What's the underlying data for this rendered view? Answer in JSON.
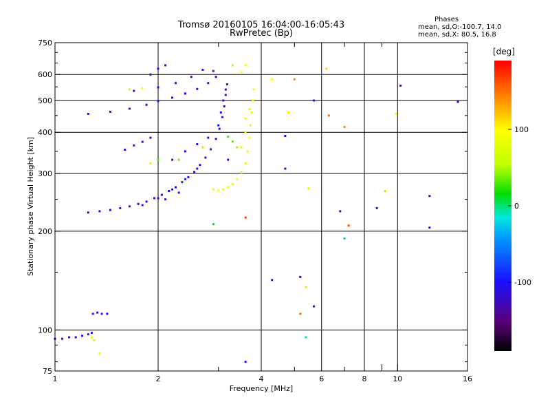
{
  "header": {
    "title_line1": "Tromsø 20160105 16:04:00-16:05:43",
    "title_line2": "RwPretec (Bp)",
    "stats_title": "Phases",
    "stats_line1": "mean, sd,O:-100.7, 14.0",
    "stats_line2": "mean, sd,X:  80.5, 16.8"
  },
  "colorbar": {
    "label": "[deg]",
    "ticks": [
      {
        "value": 100,
        "label": "100"
      },
      {
        "value": 0,
        "label": "0"
      },
      {
        "value": -100,
        "label": "-100"
      }
    ],
    "range": [
      -190,
      190
    ]
  },
  "chart_data": {
    "type": "scatter",
    "title": "Tromsø 20160105 16:04:00-16:05:43",
    "subtitle": "RwPretec (Bp)",
    "xlabel": "Frequency [MHz]",
    "ylabel": "Stationary phase Virtual Height [km]",
    "xscale": "log",
    "yscale": "log",
    "xlim": [
      1,
      16
    ],
    "ylim": [
      75,
      750
    ],
    "xticks": [
      1,
      2,
      4,
      6,
      8,
      10,
      16
    ],
    "xtick_labels": [
      "1",
      "2",
      "4",
      "6",
      "8",
      "10",
      "16"
    ],
    "xgrid": [
      2,
      4,
      6,
      8,
      10
    ],
    "xminor": [
      3,
      5,
      7,
      9
    ],
    "yticks": [
      75,
      100,
      200,
      300,
      400,
      500,
      600,
      750
    ],
    "ytick_labels": [
      "75",
      "100",
      "200",
      "300",
      "400",
      "500",
      "600",
      "750"
    ],
    "ygrid": [
      100,
      200,
      300,
      400,
      500,
      600
    ],
    "grid": true,
    "color_variable": "phase [deg]",
    "series": [
      {
        "mode": "O",
        "points": [
          [
            1.0,
            94,
            -105
          ],
          [
            1.05,
            94,
            -112
          ],
          [
            1.1,
            95,
            -100
          ],
          [
            1.15,
            95,
            -108
          ],
          [
            1.2,
            96,
            -95
          ],
          [
            1.25,
            97,
            -118
          ],
          [
            1.28,
            98,
            -102
          ],
          [
            1.29,
            112,
            -98
          ],
          [
            1.33,
            113,
            -110
          ],
          [
            1.37,
            112,
            -92
          ],
          [
            1.42,
            112,
            -106
          ],
          [
            1.25,
            228,
            -105
          ],
          [
            1.35,
            230,
            -110
          ],
          [
            1.45,
            232,
            -100
          ],
          [
            1.55,
            235,
            -108
          ],
          [
            1.65,
            238,
            -104
          ],
          [
            1.75,
            242,
            -112
          ],
          [
            1.85,
            246,
            -98
          ],
          [
            1.95,
            252,
            -106
          ],
          [
            2.05,
            258,
            -110
          ],
          [
            2.15,
            265,
            -102
          ],
          [
            2.25,
            272,
            -108
          ],
          [
            2.35,
            282,
            -96
          ],
          [
            2.45,
            292,
            -104
          ],
          [
            2.55,
            303,
            -110
          ],
          [
            2.65,
            318,
            -100
          ],
          [
            2.75,
            335,
            -106
          ],
          [
            2.85,
            355,
            -98
          ],
          [
            2.95,
            382,
            -110
          ],
          [
            3.02,
            410,
            -102
          ],
          [
            3.08,
            445,
            -108
          ],
          [
            3.12,
            480,
            -100
          ],
          [
            3.15,
            520,
            -112
          ],
          [
            3.18,
            560,
            -104
          ],
          [
            1.8,
            240,
            -95
          ],
          [
            2.0,
            252,
            -90
          ],
          [
            2.2,
            268,
            -97
          ],
          [
            2.4,
            288,
            -92
          ],
          [
            2.6,
            310,
            -99
          ],
          [
            1.6,
            354,
            -106
          ],
          [
            1.7,
            365,
            -110
          ],
          [
            1.8,
            374,
            -100
          ],
          [
            1.9,
            385,
            -112
          ],
          [
            1.25,
            455,
            -108
          ],
          [
            1.45,
            462,
            -100
          ],
          [
            1.65,
            472,
            -110
          ],
          [
            1.85,
            485,
            -104
          ],
          [
            2.0,
            498,
            -98
          ],
          [
            2.2,
            510,
            -108
          ],
          [
            2.4,
            525,
            -100
          ],
          [
            2.6,
            542,
            -112
          ],
          [
            2.8,
            565,
            -104
          ],
          [
            2.95,
            590,
            -110
          ],
          [
            2.9,
            615,
            -100
          ],
          [
            1.7,
            535,
            -108
          ],
          [
            2.0,
            548,
            -100
          ],
          [
            2.25,
            565,
            -112
          ],
          [
            2.5,
            590,
            -104
          ],
          [
            2.7,
            620,
            -96
          ],
          [
            1.9,
            600,
            -110
          ],
          [
            2.0,
            625,
            -102
          ],
          [
            2.1,
            640,
            -108
          ],
          [
            2.2,
            330,
            -100
          ],
          [
            2.4,
            350,
            -110
          ],
          [
            2.6,
            368,
            -104
          ],
          [
            2.8,
            385,
            -112
          ],
          [
            3.0,
            420,
            -98
          ],
          [
            3.05,
            460,
            -110
          ],
          [
            3.1,
            500,
            -102
          ],
          [
            3.15,
            540,
            -108
          ],
          [
            2.1,
            250,
            -95
          ],
          [
            2.3,
            262,
            -103
          ],
          [
            3.2,
            330,
            -100
          ],
          [
            4.7,
            390,
            -105
          ],
          [
            4.7,
            310,
            -112
          ],
          [
            5.7,
            500,
            -100
          ],
          [
            6.8,
            230,
            -110
          ],
          [
            8.7,
            235,
            -104
          ],
          [
            12.4,
            205,
            -96
          ],
          [
            12.4,
            256,
            -110
          ],
          [
            10.2,
            555,
            -98
          ],
          [
            4.3,
            142,
            -106
          ],
          [
            5.2,
            145,
            -100
          ],
          [
            5.7,
            118,
            -110
          ],
          [
            3.6,
            80,
            -104
          ],
          [
            15.0,
            495,
            -102
          ]
        ]
      },
      {
        "mode": "X",
        "points": [
          [
            1.28,
            95,
            85
          ],
          [
            1.3,
            93,
            70
          ],
          [
            1.35,
            85,
            90
          ],
          [
            2.9,
            268,
            80
          ],
          [
            3.0,
            266,
            95
          ],
          [
            3.1,
            268,
            78
          ],
          [
            3.2,
            272,
            88
          ],
          [
            3.3,
            278,
            82
          ],
          [
            3.4,
            288,
            92
          ],
          [
            3.5,
            302,
            76
          ],
          [
            3.6,
            322,
            86
          ],
          [
            3.65,
            350,
            80
          ],
          [
            3.7,
            385,
            94
          ],
          [
            3.72,
            420,
            78
          ],
          [
            3.75,
            460,
            86
          ],
          [
            3.78,
            500,
            80
          ],
          [
            3.8,
            540,
            92
          ],
          [
            3.5,
            360,
            84
          ],
          [
            3.6,
            400,
            88
          ],
          [
            3.6,
            440,
            90
          ],
          [
            3.7,
            470,
            76
          ],
          [
            3.4,
            360,
            45
          ],
          [
            3.3,
            375,
            35
          ],
          [
            3.2,
            388,
            30
          ],
          [
            1.65,
            540,
            70
          ],
          [
            1.8,
            545,
            95
          ],
          [
            2.7,
            360,
            50
          ],
          [
            2.3,
            330,
            40
          ],
          [
            2.0,
            330,
            30
          ],
          [
            1.9,
            322,
            55
          ],
          [
            3.5,
            610,
            95
          ],
          [
            3.6,
            640,
            100
          ],
          [
            3.3,
            640,
            110
          ],
          [
            4.3,
            580,
            90
          ],
          [
            4.8,
            460,
            105
          ],
          [
            5.0,
            580,
            140
          ],
          [
            6.2,
            625,
            115
          ],
          [
            6.3,
            450,
            150
          ],
          [
            7.0,
            415,
            140
          ],
          [
            9.2,
            265,
            50
          ],
          [
            9.9,
            455,
            80
          ],
          [
            5.2,
            112,
            150
          ],
          [
            5.4,
            135,
            60
          ],
          [
            5.5,
            270,
            80
          ],
          [
            7.2,
            208,
            160
          ],
          [
            3.6,
            220,
            170
          ],
          [
            2.9,
            210,
            10
          ],
          [
            7.0,
            190,
            5
          ],
          [
            5.4,
            95,
            0
          ]
        ]
      }
    ]
  }
}
